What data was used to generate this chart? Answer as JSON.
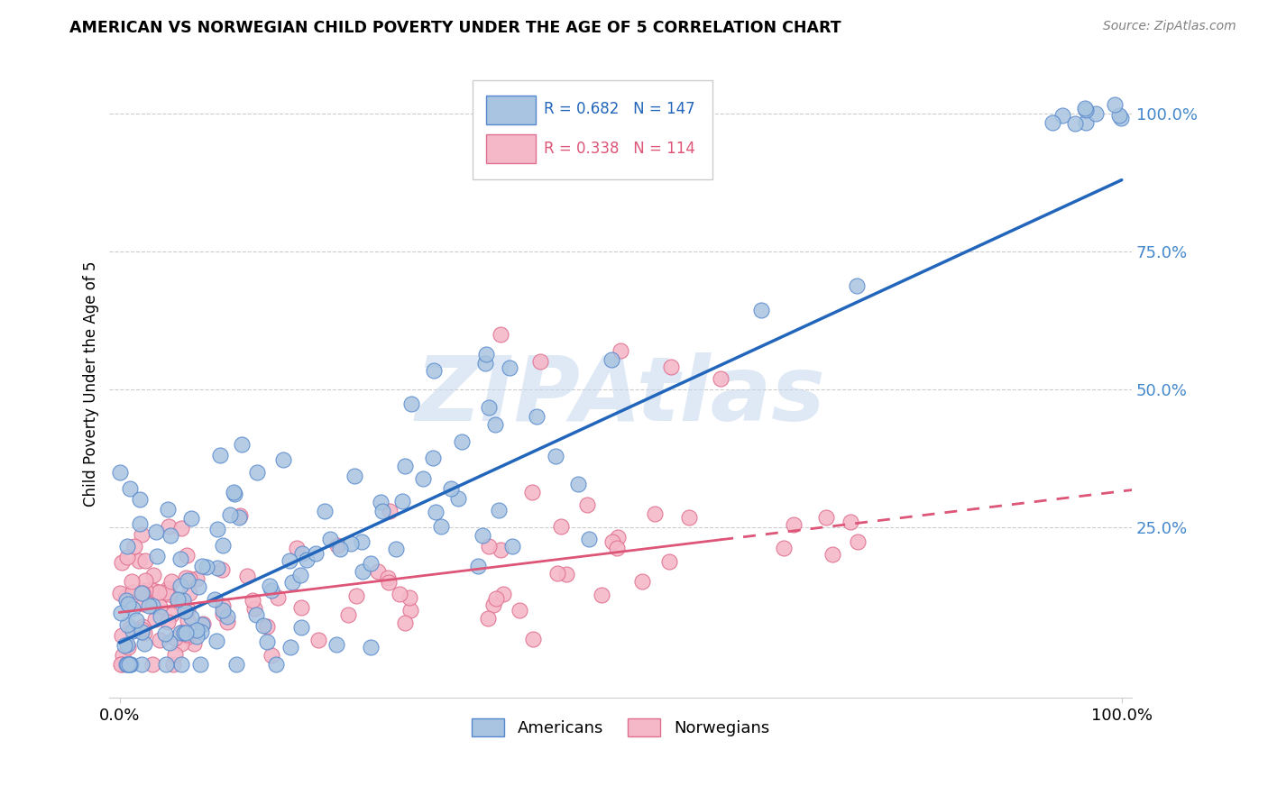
{
  "title": "AMERICAN VS NORWEGIAN CHILD POVERTY UNDER THE AGE OF 5 CORRELATION CHART",
  "source": "Source: ZipAtlas.com",
  "ylabel": "Child Poverty Under the Age of 5",
  "legend_blue_R": "R = 0.682",
  "legend_blue_N": "N = 147",
  "legend_pink_R": "R = 0.338",
  "legend_pink_N": "N = 114",
  "legend_label_blue": "Americans",
  "legend_label_pink": "Norwegians",
  "blue_scatter_color": "#A8C4E0",
  "blue_scatter_edge": "#5588CC",
  "pink_scatter_color": "#F5B8C8",
  "pink_scatter_edge": "#E07090",
  "blue_line_color": "#2266BB",
  "pink_line_color": "#DD5577",
  "watermark_color": "#C5D8EE",
  "watermark_text": "ZIPAtlas",
  "xtick_labels": [
    "0.0%",
    "100.0%"
  ],
  "ytick_values": [
    0.25,
    0.5,
    0.75,
    1.0
  ],
  "ytick_labels": [
    "25.0%",
    "50.0%",
    "75.0%",
    "100.0%"
  ],
  "ytick_color": "#4488CC",
  "blue_N": 147,
  "pink_N": 114,
  "blue_R": 0.682,
  "pink_R": 0.338
}
